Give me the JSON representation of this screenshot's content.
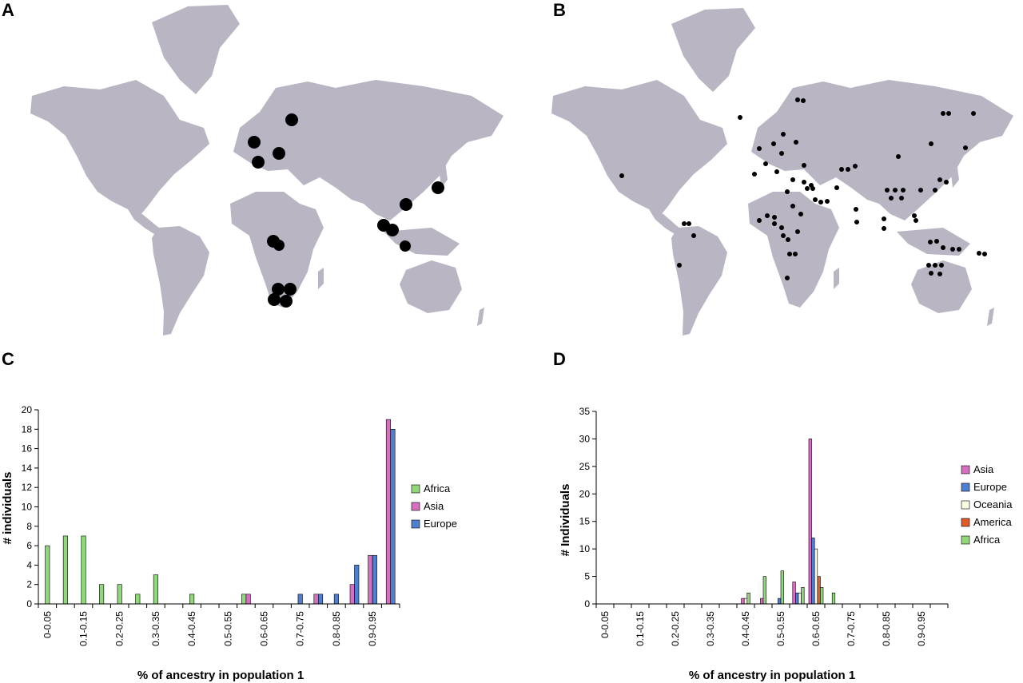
{
  "panels": {
    "a": "A",
    "b": "B",
    "c": "C",
    "d": "D"
  },
  "colors": {
    "land": "#b9b5c3",
    "dot": "#000000",
    "Africa": "#8fd97a",
    "Asia": "#d76fc0",
    "Europe": "#4f7fd3",
    "Oceania": "#fbfbe4",
    "America": "#e05a2a"
  },
  "map_a": {
    "marker": "sampled population (large black dot)"
  },
  "map_b": {
    "marker": "sampled population (small black dot)"
  },
  "chart_data": [
    {
      "type": "bar",
      "panel": "C",
      "xlabel": "% of ancestry in population 1",
      "ylabel": "# individuals",
      "ylim": [
        0,
        20
      ],
      "yticks": [
        0,
        2,
        4,
        6,
        8,
        10,
        12,
        14,
        16,
        18,
        20
      ],
      "categories": [
        "0-0.05",
        "0.05-0.1",
        "0.1-0.15",
        "0.15-0.2",
        "0.2-0.25",
        "0.25-0.3",
        "0.3-0.35",
        "0.35-0.4",
        "0.4-0.45",
        "0.45-0.5",
        "0.5-0.55",
        "0.55-0.6",
        "0.6-0.65",
        "0.65-0.7",
        "0.7-0.75",
        "0.75-0.8",
        "0.8-0.85",
        "0.85-0.9",
        "0.9-0.95",
        "0.95-1"
      ],
      "tick_labels": [
        "0-0.05",
        "0.1-0.15",
        "0.2-0.25",
        "0.3-0.35",
        "0.4-0.45",
        "0.5-0.55",
        "0.6-0.65",
        "0.7-0.75",
        "0.8-0.85",
        "0.9-0.95"
      ],
      "legend_position": "right",
      "series": [
        {
          "name": "Africa",
          "values": [
            6,
            7,
            7,
            2,
            2,
            1,
            3,
            0,
            1,
            0,
            0,
            1,
            0,
            0,
            0,
            0,
            0,
            0,
            0,
            0
          ]
        },
        {
          "name": "Asia",
          "values": [
            0,
            0,
            0,
            0,
            0,
            0,
            0,
            0,
            0,
            0,
            0,
            1,
            0,
            0,
            0,
            1,
            0,
            2,
            5,
            19
          ]
        },
        {
          "name": "Europe",
          "values": [
            0,
            0,
            0,
            0,
            0,
            0,
            0,
            0,
            0,
            0,
            0,
            0,
            0,
            0,
            1,
            1,
            1,
            4,
            5,
            18
          ]
        }
      ]
    },
    {
      "type": "bar",
      "panel": "D",
      "xlabel": "% of ancestry in population 1",
      "ylabel": "# Individuals",
      "ylim": [
        0,
        35
      ],
      "yticks": [
        0,
        5,
        10,
        15,
        20,
        25,
        30,
        35
      ],
      "categories": [
        "0-0.05",
        "0.05-0.1",
        "0.1-0.15",
        "0.15-0.2",
        "0.2-0.25",
        "0.25-0.3",
        "0.3-0.35",
        "0.35-0.4",
        "0.4-0.45",
        "0.45-0.5",
        "0.5-0.55",
        "0.55-0.6",
        "0.6-0.65",
        "0.65-0.7",
        "0.7-0.75",
        "0.75-0.8",
        "0.8-0.85",
        "0.85-0.9",
        "0.9-0.95",
        "0.95-1"
      ],
      "tick_labels": [
        "0-0.05",
        "0.1-0.15",
        "0.2-0.25",
        "0.3-0.35",
        "0.4-0.45",
        "0.5-0.55",
        "0.6-0.65",
        "0.7-0.75",
        "0.8-0.85",
        "0.9-0.95"
      ],
      "legend_position": "right",
      "series": [
        {
          "name": "Asia",
          "values": [
            0,
            0,
            0,
            0,
            0,
            0,
            0,
            0,
            1,
            1,
            0,
            4,
            30,
            0,
            0,
            0,
            0,
            0,
            0,
            0
          ]
        },
        {
          "name": "Europe",
          "values": [
            0,
            0,
            0,
            0,
            0,
            0,
            0,
            0,
            0,
            0,
            1,
            2,
            12,
            0,
            0,
            0,
            0,
            0,
            0,
            0
          ]
        },
        {
          "name": "Oceania",
          "values": [
            0,
            0,
            0,
            0,
            0,
            0,
            0,
            0,
            1,
            0,
            0,
            2,
            10,
            0,
            0,
            0,
            0,
            0,
            0,
            0
          ]
        },
        {
          "name": "America",
          "values": [
            0,
            0,
            0,
            0,
            0,
            0,
            0,
            0,
            0,
            0,
            0,
            0,
            5,
            0,
            0,
            0,
            0,
            0,
            0,
            0
          ]
        },
        {
          "name": "Africa",
          "values": [
            0,
            0,
            0,
            0,
            0,
            0,
            0,
            0,
            2,
            5,
            6,
            3,
            3,
            2,
            0,
            0,
            0,
            0,
            0,
            0
          ]
        }
      ]
    }
  ]
}
